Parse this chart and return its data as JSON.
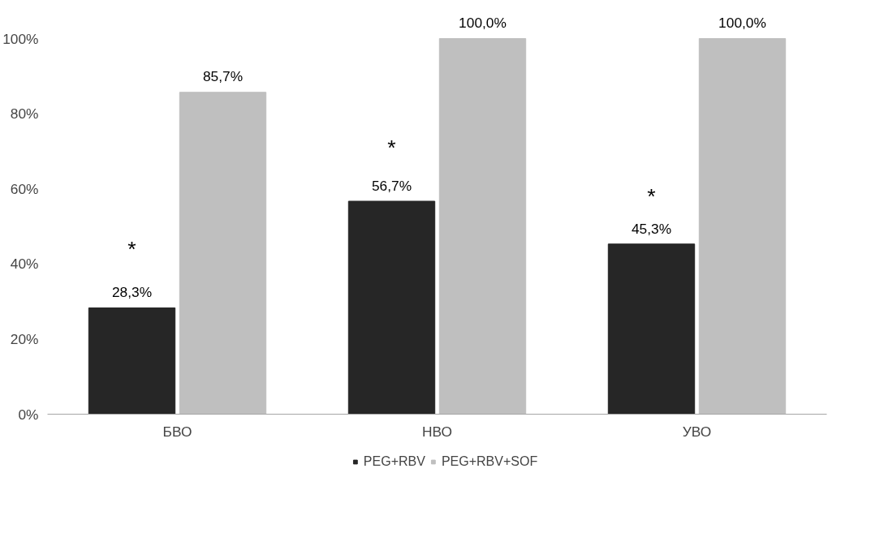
{
  "chart_data": {
    "type": "bar",
    "categories": [
      "БВО",
      "НВО",
      "УВО"
    ],
    "series": [
      {
        "name": "PEG+RBV",
        "color": "#262626",
        "values": [
          28.3,
          56.7,
          45.3
        ],
        "value_labels": [
          "28,3%",
          "56,7%",
          "45,3%"
        ]
      },
      {
        "name": "PEG+RBV+SOF",
        "color": "#bfbfbf",
        "values": [
          85.7,
          100.0,
          100.0
        ],
        "value_labels": [
          "85,7%",
          "100,0%",
          "100,0%"
        ]
      }
    ],
    "ylim": [
      0,
      100
    ],
    "yticks": [
      {
        "value": 0,
        "label": "0%"
      },
      {
        "value": 20,
        "label": "20%"
      },
      {
        "value": 40,
        "label": "40%"
      },
      {
        "value": 60,
        "label": "60%"
      },
      {
        "value": 80,
        "label": "80%"
      },
      {
        "value": 100,
        "label": "100%"
      }
    ],
    "annotations": [
      {
        "text": "*",
        "x": "БВО",
        "y": 44
      },
      {
        "text": "*",
        "x": "НВО",
        "y": 71
      },
      {
        "text": "*",
        "x": "УВО",
        "y": 58
      }
    ],
    "grid": false,
    "legend": "bottom"
  }
}
